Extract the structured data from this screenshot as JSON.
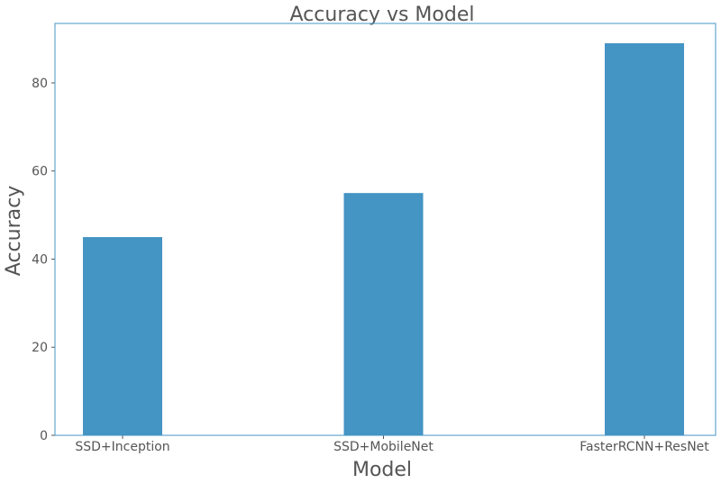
{
  "chart_data": {
    "type": "bar",
    "title": "Accuracy vs Model",
    "xlabel": "Model",
    "ylabel": "Accuracy",
    "categories": [
      "SSD+Inception",
      "SSD+MobileNet",
      "FasterRCNN+ResNet"
    ],
    "values": [
      45,
      55,
      89
    ],
    "ylim": [
      0,
      93.5
    ],
    "yticks": [
      0,
      20,
      40,
      60,
      80
    ],
    "grid": false,
    "bar_color": "#4494c4",
    "axis_color": "#4494c4"
  }
}
